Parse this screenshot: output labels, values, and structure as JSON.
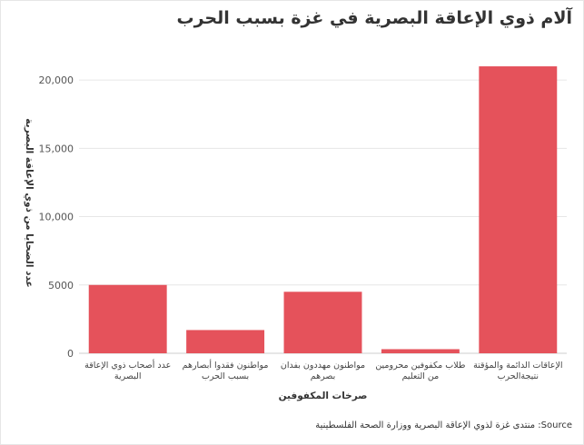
{
  "title": "آلام ذوي الإعاقة البصرية في غزة بسبب الحرب",
  "source_note": "منتدى غزة لذوي الإعاقة البصرية ووزارة الصحة الفلسطينية :Source",
  "colors": {
    "bar": "#e5525b",
    "grid": "#e6e6e6",
    "axis": "#cccccc"
  },
  "chart_data": {
    "type": "bar",
    "title": "آلام ذوي الإعاقة البصرية في غزة بسبب الحرب",
    "xlabel": "صرخات المكفوفين",
    "ylabel": "عدد الضحايا من ذوي الإعاقة البصرية",
    "ylim": [
      0,
      22000
    ],
    "yticks": [
      0,
      5000,
      10000,
      15000,
      20000
    ],
    "ytick_labels": [
      "0",
      "5000",
      "10,000",
      "15,000",
      "20,000"
    ],
    "grid": true,
    "categories": [
      [
        "عدد أصحاب ذوي الإعاقة",
        "البصرية"
      ],
      [
        "مواطنون فقدوا أبصارهم",
        "بسبب الحرب"
      ],
      [
        "مواطنون مهددون بفدان",
        "بصرهم"
      ],
      [
        "طلاب مكفوفين محرومين",
        "من التعليم"
      ],
      [
        "الإعاقات الدائمة والمؤقتة",
        "نتيجةالحرب"
      ]
    ],
    "values": [
      5000,
      1700,
      4500,
      300,
      21000
    ]
  }
}
